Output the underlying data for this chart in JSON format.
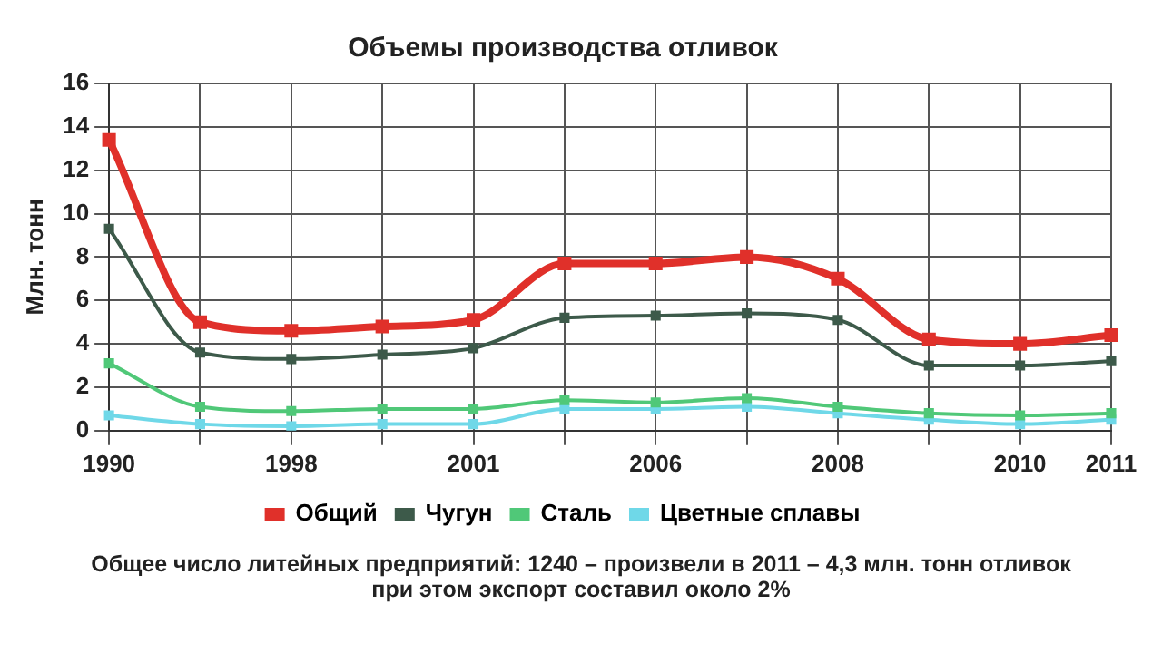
{
  "chart_data": {
    "type": "line",
    "title": "Объемы производства отливок",
    "ylabel": "Млн. тонн",
    "categories": [
      "1990",
      null,
      "1998",
      null,
      "2001",
      null,
      "2006",
      null,
      "2008",
      null,
      "2010",
      "2011"
    ],
    "series": [
      {
        "name": "Общий",
        "color": "#e0302a",
        "values": [
          13.4,
          5.0,
          4.6,
          4.8,
          5.1,
          7.7,
          7.7,
          8.0,
          7.0,
          4.2,
          4.0,
          4.4
        ]
      },
      {
        "name": "Чугун",
        "color": "#3d5a4a",
        "values": [
          9.3,
          3.6,
          3.3,
          3.5,
          3.8,
          5.2,
          5.3,
          5.4,
          5.1,
          3.0,
          3.0,
          3.2
        ]
      },
      {
        "name": "Сталь",
        "color": "#50c878",
        "values": [
          3.1,
          1.1,
          0.9,
          1.0,
          1.0,
          1.4,
          1.3,
          1.5,
          1.1,
          0.8,
          0.7,
          0.8
        ]
      },
      {
        "name": "Цветные сплавы",
        "color": "#6fd8e8",
        "values": [
          0.7,
          0.3,
          0.2,
          0.3,
          0.3,
          1.0,
          1.0,
          1.1,
          0.8,
          0.5,
          0.3,
          0.5
        ]
      }
    ],
    "ylim": [
      0,
      16
    ],
    "yticks": [
      0,
      2,
      4,
      6,
      8,
      10,
      12,
      14,
      16
    ],
    "grid": true,
    "legend": "bottom",
    "marker": "square",
    "annotations": [
      "Общее число литейных предприятий: 1240 – произвели в 2011 – 4,3 млн. тонн отливок",
      "при этом экспорт составил около 2%"
    ]
  }
}
